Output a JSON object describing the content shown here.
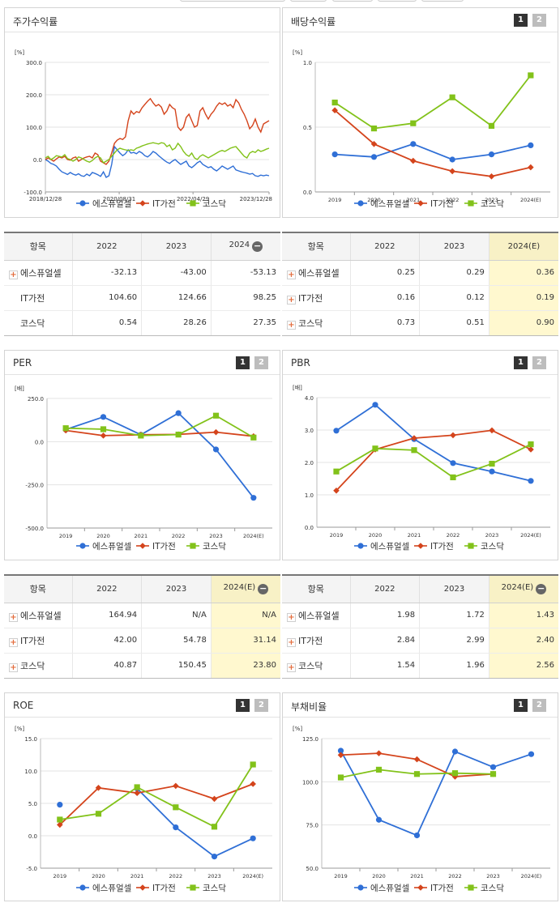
{
  "colors": {
    "s1": "#2f6fd6",
    "s2": "#d4441c",
    "s3": "#82c21a"
  },
  "legend": [
    "에스퓨얼셀",
    "IT가전",
    "코스닥"
  ],
  "pagination": [
    "1",
    "2"
  ],
  "panels": {
    "price": {
      "title": "주가수익률",
      "unit": "[%]"
    },
    "div": {
      "title": "배당수익률",
      "unit": "[%]"
    },
    "per": {
      "title": "PER",
      "unit": "[배]"
    },
    "pbr": {
      "title": "PBR",
      "unit": "[배]"
    },
    "roe": {
      "title": "ROE",
      "unit": "[%]"
    },
    "debt": {
      "title": "부채비율",
      "unit": "[%]"
    }
  },
  "tables": {
    "price": {
      "headers": [
        "항목",
        "2022",
        "2023",
        "2024"
      ],
      "rows": [
        {
          "name": "에스퓨얼셀",
          "v": [
            "-32.13",
            "-43.00",
            "-53.13"
          ],
          "plus": true
        },
        {
          "name": "IT가전",
          "v": [
            "104.60",
            "124.66",
            "98.25"
          ],
          "plus": false
        },
        {
          "name": "코스닥",
          "v": [
            "0.54",
            "28.26",
            "27.35"
          ],
          "plus": false
        }
      ]
    },
    "div": {
      "headers": [
        "항목",
        "2022",
        "2023",
        "2024(E)"
      ],
      "rows": [
        {
          "name": "에스퓨얼셀",
          "v": [
            "0.25",
            "0.29",
            "0.36"
          ],
          "plus": true
        },
        {
          "name": "IT가전",
          "v": [
            "0.16",
            "0.12",
            "0.19"
          ],
          "plus": true
        },
        {
          "name": "코스닥",
          "v": [
            "0.73",
            "0.51",
            "0.90"
          ],
          "plus": true
        }
      ]
    },
    "per": {
      "headers": [
        "항목",
        "2022",
        "2023",
        "2024(E)"
      ],
      "rows": [
        {
          "name": "에스퓨얼셀",
          "v": [
            "164.94",
            "N/A",
            "N/A"
          ],
          "plus": true
        },
        {
          "name": "IT가전",
          "v": [
            "42.00",
            "54.78",
            "31.14"
          ],
          "plus": true
        },
        {
          "name": "코스닥",
          "v": [
            "40.87",
            "150.45",
            "23.80"
          ],
          "plus": true
        }
      ]
    },
    "pbr": {
      "headers": [
        "항목",
        "2022",
        "2023",
        "2024(E)"
      ],
      "rows": [
        {
          "name": "에스퓨얼셀",
          "v": [
            "1.98",
            "1.72",
            "1.43"
          ],
          "plus": true
        },
        {
          "name": "IT가전",
          "v": [
            "2.84",
            "2.99",
            "2.40"
          ],
          "plus": true
        },
        {
          "name": "코스닥",
          "v": [
            "1.54",
            "1.96",
            "2.56"
          ],
          "plus": true
        }
      ]
    }
  },
  "chart_data": [
    {
      "id": "price",
      "type": "line",
      "title": "주가수익률",
      "ylabel": "[%]",
      "ylim": [
        -100,
        300
      ],
      "yticks": [
        -100,
        0,
        100,
        200,
        300
      ],
      "ytick_labels": [
        "-100.0",
        "0.0",
        "100.0",
        "200.0",
        "300.0"
      ],
      "xtick_labels": [
        "2018/12/28",
        "2020/08/31",
        "2022/04/29",
        "2023/12/28"
      ],
      "series": [
        {
          "name": "에스퓨얼셀",
          "values": [
            0,
            -5,
            -12,
            -15,
            -20,
            -30,
            -38,
            -42,
            -46,
            -40,
            -45,
            -48,
            -44,
            -50,
            -52,
            -45,
            -50,
            -40,
            -43,
            -47,
            -52,
            -38,
            -55,
            -50,
            -15,
            40,
            30,
            20,
            12,
            18,
            30,
            20,
            22,
            18,
            25,
            20,
            12,
            8,
            15,
            25,
            20,
            12,
            5,
            -2,
            -8,
            -12,
            -5,
            0,
            -8,
            -15,
            -10,
            -5,
            -20,
            -25,
            -18,
            -10,
            -5,
            -15,
            -20,
            -25,
            -22,
            -30,
            -35,
            -28,
            -20,
            -25,
            -30,
            -25,
            -20,
            -32,
            -35,
            -38,
            -40,
            -42,
            -45,
            -43,
            -50,
            -52,
            -48,
            -50,
            -48,
            -50
          ]
        },
        {
          "name": "IT가전",
          "values": [
            0,
            5,
            0,
            -5,
            2,
            8,
            5,
            10,
            0,
            -2,
            5,
            8,
            -5,
            0,
            5,
            8,
            10,
            5,
            20,
            15,
            -5,
            -10,
            -15,
            -5,
            20,
            50,
            60,
            65,
            62,
            70,
            120,
            150,
            140,
            148,
            145,
            160,
            170,
            180,
            188,
            175,
            165,
            170,
            162,
            140,
            150,
            170,
            160,
            155,
            100,
            90,
            100,
            130,
            140,
            120,
            100,
            105,
            150,
            160,
            140,
            125,
            140,
            150,
            165,
            175,
            170,
            175,
            165,
            170,
            160,
            185,
            175,
            155,
            140,
            120,
            95,
            105,
            125,
            100,
            85,
            110,
            115,
            120
          ]
        },
        {
          "name": "코스닥",
          "values": [
            5,
            10,
            0,
            5,
            12,
            10,
            8,
            15,
            3,
            0,
            -5,
            0,
            8,
            5,
            0,
            -5,
            -8,
            -3,
            5,
            10,
            5,
            -10,
            -5,
            0,
            10,
            20,
            30,
            35,
            32,
            30,
            28,
            30,
            28,
            35,
            38,
            42,
            45,
            48,
            50,
            52,
            50,
            48,
            52,
            50,
            40,
            45,
            30,
            35,
            50,
            40,
            25,
            15,
            10,
            20,
            5,
            0,
            10,
            15,
            10,
            5,
            10,
            15,
            20,
            25,
            28,
            25,
            30,
            35,
            38,
            40,
            30,
            20,
            10,
            5,
            20,
            25,
            22,
            30,
            25,
            28,
            32,
            35
          ]
        }
      ]
    },
    {
      "id": "div",
      "type": "line",
      "title": "배당수익률",
      "ylabel": "[%]",
      "ylim": [
        0,
        1
      ],
      "yticks": [
        0,
        0.5,
        1
      ],
      "ytick_labels": [
        "0.0",
        "0.5",
        "1.0"
      ],
      "categories": [
        "2019",
        "2020",
        "2021",
        "2022",
        "2023",
        "2024(E)"
      ],
      "series": [
        {
          "name": "에스퓨얼셀",
          "values": [
            0.29,
            0.27,
            0.37,
            0.25,
            0.29,
            0.36
          ]
        },
        {
          "name": "IT가전",
          "values": [
            0.63,
            0.37,
            0.24,
            0.16,
            0.12,
            0.19
          ]
        },
        {
          "name": "코스닥",
          "values": [
            0.69,
            0.49,
            0.53,
            0.73,
            0.51,
            0.9
          ]
        }
      ]
    },
    {
      "id": "per",
      "type": "line",
      "title": "PER",
      "ylabel": "[배]",
      "ylim": [
        -500,
        250
      ],
      "yticks": [
        -500,
        -250,
        0,
        250
      ],
      "ytick_labels": [
        "-500.0",
        "-250.0",
        "0.0",
        "250.0"
      ],
      "categories": [
        "2019",
        "2020",
        "2021",
        "2022",
        "2023",
        "2024(E)"
      ],
      "series": [
        {
          "name": "에스퓨얼셀",
          "values": [
            70,
            143,
            40,
            164.94,
            -45,
            -325
          ]
        },
        {
          "name": "IT가전",
          "values": [
            65,
            35,
            40,
            42.0,
            54.78,
            31.14
          ]
        },
        {
          "name": "코스닥",
          "values": [
            78,
            72,
            35,
            40.87,
            150.45,
            23.8
          ]
        }
      ]
    },
    {
      "id": "pbr",
      "type": "line",
      "title": "PBR",
      "ylabel": "[배]",
      "ylim": [
        0,
        4
      ],
      "yticks": [
        0,
        1,
        2,
        3,
        4
      ],
      "ytick_labels": [
        "0.0",
        "1.0",
        "2.0",
        "3.0",
        "4.0"
      ],
      "categories": [
        "2019",
        "2020",
        "2021",
        "2022",
        "2023",
        "2024(E)"
      ],
      "series": [
        {
          "name": "에스퓨얼셀",
          "values": [
            2.98,
            3.78,
            2.72,
            1.98,
            1.72,
            1.43
          ]
        },
        {
          "name": "IT가전",
          "values": [
            1.13,
            2.4,
            2.75,
            2.84,
            2.99,
            2.4
          ]
        },
        {
          "name": "코스닥",
          "values": [
            1.72,
            2.43,
            2.38,
            1.54,
            1.96,
            2.56
          ]
        }
      ]
    },
    {
      "id": "roe",
      "type": "line",
      "title": "ROE",
      "ylabel": "[%]",
      "ylim": [
        -5,
        15
      ],
      "yticks": [
        -5,
        0,
        5,
        10,
        15
      ],
      "ytick_labels": [
        "-5.0",
        "0.0",
        "5.0",
        "10.0",
        "15.0"
      ],
      "categories": [
        "2019",
        "2020",
        "2021",
        "2022",
        "2023",
        "2024(E)"
      ],
      "series": [
        {
          "name": "에스퓨얼셀",
          "values": [
            4.8,
            null,
            7.3,
            1.3,
            -3.2,
            -0.4
          ]
        },
        {
          "name": "IT가전",
          "values": [
            1.7,
            7.4,
            6.6,
            7.7,
            5.7,
            8.0
          ]
        },
        {
          "name": "코스닥",
          "values": [
            2.5,
            3.4,
            7.5,
            4.4,
            1.4,
            11.0
          ]
        }
      ]
    },
    {
      "id": "debt",
      "type": "line",
      "title": "부채비율",
      "ylabel": "[%]",
      "ylim": [
        50,
        125
      ],
      "yticks": [
        50,
        75,
        100,
        125
      ],
      "ytick_labels": [
        "50.0",
        "75.0",
        "100.0",
        "125.0"
      ],
      "categories": [
        "2019",
        "2020",
        "2021",
        "2022",
        "2023",
        "2024(E)"
      ],
      "series": [
        {
          "name": "에스퓨얼셀",
          "values": [
            118,
            78,
            69,
            117.5,
            108.5,
            116
          ]
        },
        {
          "name": "IT가전",
          "values": [
            115.5,
            116.5,
            113,
            103,
            104.5,
            null
          ]
        },
        {
          "name": "코스닥",
          "values": [
            102.5,
            107,
            104.5,
            105,
            104.5,
            null
          ]
        }
      ]
    }
  ]
}
